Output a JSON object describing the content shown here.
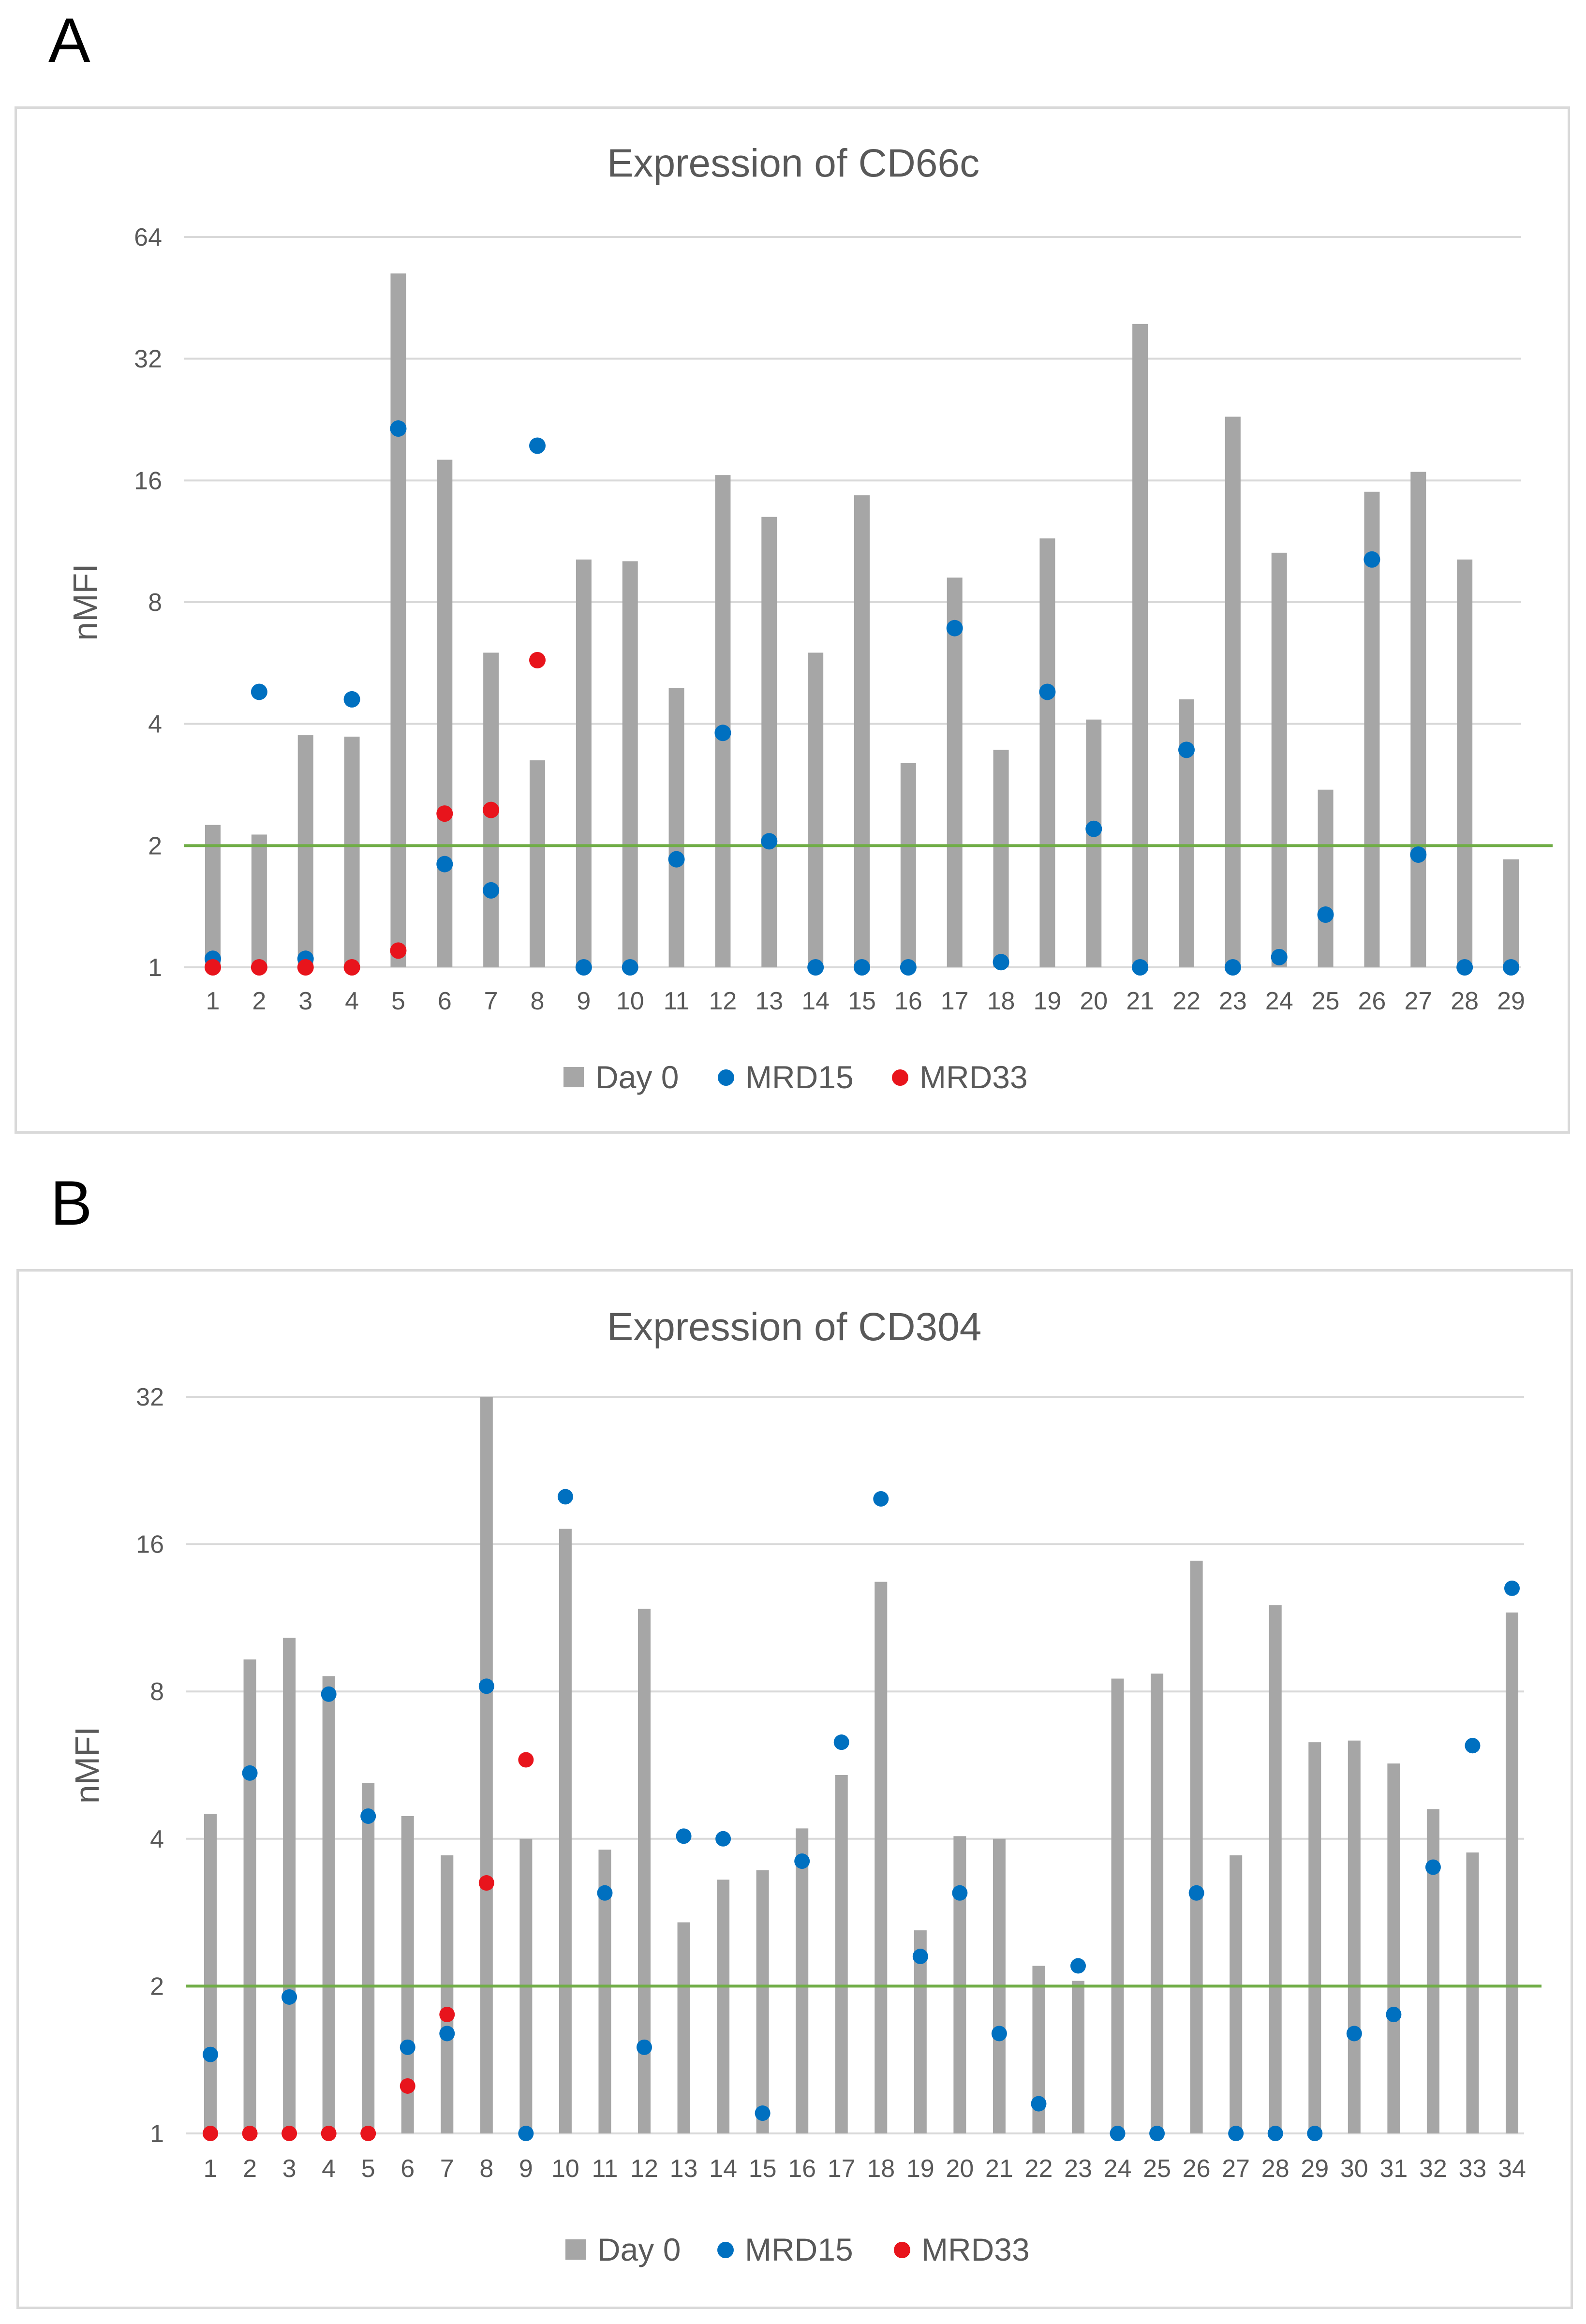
{
  "panels": [
    {
      "letter": "A"
    },
    {
      "letter": "B"
    }
  ],
  "colors": {
    "bar": "#a6a6a6",
    "mrd15": "#0070c0",
    "mrd33": "#e8141c",
    "threshold": "#70ad47",
    "grid": "#d9d9d9",
    "text": "#595959"
  },
  "chart_data": [
    {
      "type": "bar",
      "title": "Expression of CD66c",
      "ylabel": "nMFI",
      "xlabel": "",
      "yscale": "log2",
      "ylim": [
        1,
        64
      ],
      "yticks": [
        1,
        2,
        4,
        8,
        16,
        32,
        64
      ],
      "threshold": 2,
      "legend": {
        "position": "bottom",
        "labels": [
          "Day 0",
          "MRD15",
          "MRD33"
        ]
      },
      "categories": [
        "1",
        "2",
        "3",
        "4",
        "5",
        "6",
        "7",
        "8",
        "9",
        "10",
        "11",
        "12",
        "13",
        "14",
        "15",
        "16",
        "17",
        "18",
        "19",
        "20",
        "21",
        "22",
        "23",
        "24",
        "25",
        "26",
        "27",
        "28",
        "29"
      ],
      "series": [
        {
          "name": "Day 0",
          "kind": "bar",
          "values": [
            2.25,
            2.13,
            3.75,
            3.72,
            52,
            18,
            6,
            3.25,
            10.2,
            10.1,
            4.9,
            16.5,
            13,
            6,
            14.7,
            3.2,
            9.2,
            3.45,
            11.5,
            4.1,
            39,
            4.6,
            23,
            10.6,
            2.75,
            15,
            16.8,
            10.2,
            1.85
          ]
        },
        {
          "name": "MRD15",
          "kind": "point",
          "values": [
            1.05,
            4.8,
            1.05,
            4.6,
            21.5,
            1.8,
            1.55,
            19.5,
            1,
            1,
            1.85,
            3.8,
            2.05,
            1,
            1,
            1,
            6.9,
            1.03,
            4.8,
            2.2,
            1,
            3.45,
            1,
            1.06,
            1.35,
            10.2,
            1.9,
            1,
            1
          ]
        },
        {
          "name": "MRD33",
          "kind": "point",
          "values": [
            1,
            1,
            1,
            1,
            1.1,
            2.4,
            2.45,
            5.75,
            null,
            null,
            null,
            null,
            null,
            null,
            null,
            null,
            null,
            null,
            null,
            null,
            null,
            null,
            null,
            null,
            null,
            null,
            null,
            null,
            null
          ]
        }
      ]
    },
    {
      "type": "bar",
      "title": "Expression of CD304",
      "ylabel": "nMFI",
      "xlabel": "",
      "yscale": "log2",
      "ylim": [
        1,
        32
      ],
      "yticks": [
        1,
        2,
        4,
        8,
        16,
        32
      ],
      "threshold": 2,
      "legend": {
        "position": "bottom",
        "labels": [
          "Day 0",
          "MRD15",
          "MRD33"
        ]
      },
      "categories": [
        "1",
        "2",
        "3",
        "4",
        "5",
        "6",
        "7",
        "8",
        "9",
        "10",
        "11",
        "12",
        "13",
        "14",
        "15",
        "16",
        "17",
        "18",
        "19",
        "20",
        "21",
        "22",
        "23",
        "24",
        "25",
        "26",
        "27",
        "28",
        "29",
        "30",
        "31",
        "32",
        "33",
        "34"
      ],
      "series": [
        {
          "name": "Day 0",
          "kind": "bar",
          "values": [
            4.5,
            9.3,
            10.3,
            8.6,
            5.2,
            4.45,
            3.7,
            32,
            4,
            17.2,
            3.8,
            11.8,
            2.7,
            3.3,
            3.45,
            4.2,
            5.4,
            13.4,
            2.6,
            4.05,
            4,
            2.2,
            2.05,
            8.5,
            8.7,
            14.8,
            3.7,
            12,
            6.3,
            6.35,
            5.7,
            4.6,
            3.75,
            11.6
          ]
        },
        {
          "name": "MRD15",
          "kind": "point",
          "values": [
            1.45,
            5.45,
            1.9,
            7.9,
            4.45,
            1.5,
            1.6,
            8.2,
            1,
            20,
            3.1,
            1.5,
            4.05,
            4,
            1.1,
            3.6,
            6.3,
            19.8,
            2.3,
            3.1,
            1.6,
            1.15,
            2.2,
            1,
            1,
            3.1,
            1,
            1,
            1,
            1.6,
            1.75,
            3.5,
            6.2,
            13
          ]
        },
        {
          "name": "MRD33",
          "kind": "point",
          "values": [
            1,
            1,
            1,
            1,
            1,
            1.25,
            1.75,
            3.25,
            5.8,
            null,
            null,
            null,
            null,
            null,
            null,
            null,
            null,
            null,
            null,
            null,
            null,
            null,
            null,
            null,
            null,
            null,
            null,
            null,
            null,
            null,
            null,
            null,
            null,
            null
          ]
        }
      ]
    }
  ]
}
